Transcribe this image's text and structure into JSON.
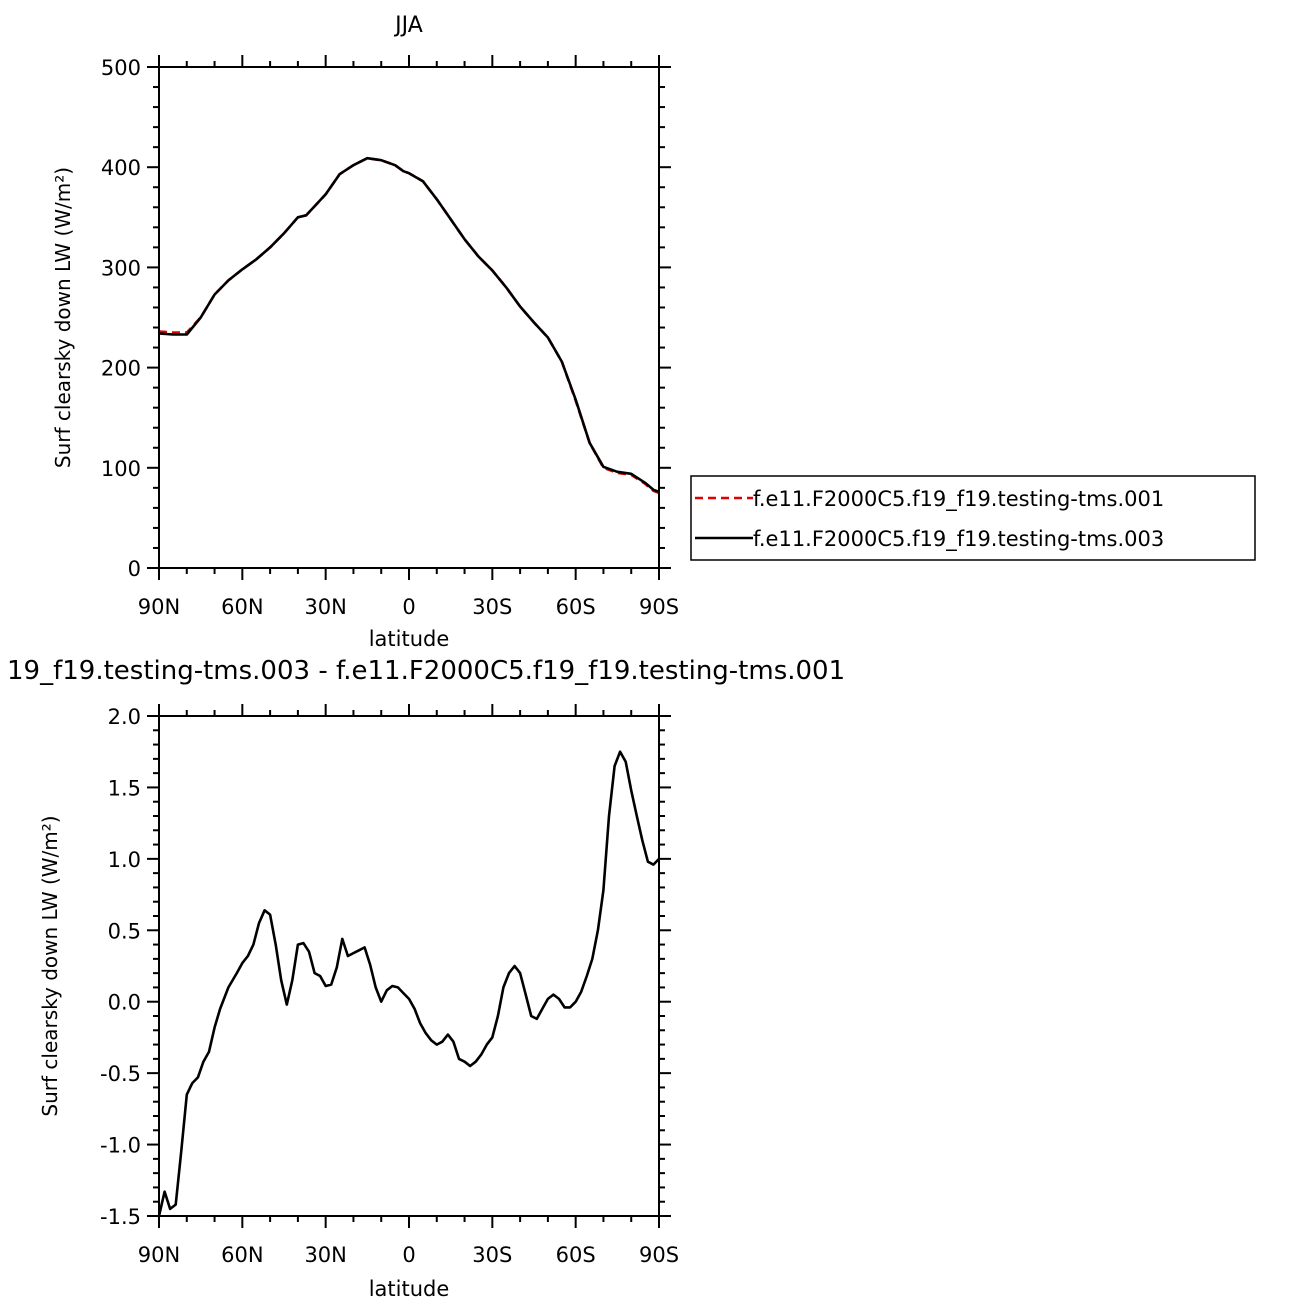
{
  "chart_data": [
    {
      "type": "line",
      "title": "JJA",
      "xlabel": "latitude",
      "ylabel": "Surf clearsky down LW (W/m²)",
      "x_tick_labels": [
        "90N",
        "60N",
        "30N",
        "0",
        "30S",
        "60S",
        "90S"
      ],
      "x_tick_values": [
        90,
        60,
        30,
        0,
        -30,
        -60,
        -90
      ],
      "xlim": [
        90,
        -90
      ],
      "ylim": [
        0,
        500
      ],
      "y_tick_labels": [
        "0",
        "100",
        "200",
        "300",
        "400",
        "500"
      ],
      "y_tick_values": [
        0,
        100,
        200,
        300,
        400,
        500
      ],
      "y_minor_step": 20,
      "grid": false,
      "legend_placement": "right",
      "series": [
        {
          "name": "f.e11.F2000C5.f19_f19.testing-tms.001",
          "color": "#e00000",
          "dash": "dashed",
          "x": [
            90,
            85,
            80,
            75,
            70,
            65,
            60,
            55,
            50,
            45,
            40,
            37,
            35,
            30,
            25,
            20,
            15,
            10,
            5,
            2,
            0,
            -5,
            -10,
            -15,
            -20,
            -25,
            -30,
            -35,
            -40,
            -45,
            -50,
            -55,
            -60,
            -65,
            -70,
            -75,
            -80,
            -85,
            -88,
            -90
          ],
          "y": [
            236,
            235,
            235,
            250,
            273,
            287,
            298,
            308,
            320,
            334,
            350,
            352,
            358,
            373,
            393,
            402,
            409,
            407,
            402,
            396,
            394,
            386,
            368,
            348,
            328,
            311,
            297,
            280,
            261,
            245,
            230,
            206,
            167,
            125,
            100,
            95,
            93,
            84,
            77,
            75
          ]
        },
        {
          "name": "f.e11.F2000C5.f19_f19.testing-tms.003",
          "color": "#000000",
          "dash": "solid",
          "x": [
            90,
            85,
            80,
            75,
            70,
            65,
            60,
            55,
            50,
            45,
            40,
            37,
            35,
            30,
            25,
            20,
            15,
            10,
            5,
            2,
            0,
            -5,
            -10,
            -15,
            -20,
            -25,
            -30,
            -35,
            -40,
            -45,
            -50,
            -55,
            -60,
            -65,
            -70,
            -75,
            -80,
            -85,
            -88,
            -90
          ],
          "y": [
            234,
            233,
            233,
            250,
            273,
            287,
            298,
            308,
            320,
            334,
            350,
            352,
            358,
            373,
            393,
            402,
            409,
            407,
            402,
            396,
            394,
            386,
            368,
            348,
            328,
            311,
            297,
            280,
            261,
            245,
            230,
            206,
            168,
            125,
            101,
            96,
            94,
            85,
            78,
            76
          ]
        }
      ]
    },
    {
      "type": "line",
      "title": "19_f19.testing-tms.003 - f.e11.F2000C5.f19_f19.testing-tms.001",
      "xlabel": "latitude",
      "ylabel": "Surf clearsky down LW (W/m²)",
      "x_tick_labels": [
        "90N",
        "60N",
        "30N",
        "0",
        "30S",
        "60S",
        "90S"
      ],
      "x_tick_values": [
        90,
        60,
        30,
        0,
        -30,
        -60,
        -90
      ],
      "xlim": [
        90,
        -90
      ],
      "ylim": [
        -1.5,
        2.0
      ],
      "y_tick_labels": [
        "-1.5",
        "-1.0",
        "-0.5",
        "0.0",
        "0.5",
        "1.0",
        "1.5",
        "2.0"
      ],
      "y_tick_values": [
        -1.5,
        -1.0,
        -0.5,
        0.0,
        0.5,
        1.0,
        1.5,
        2.0
      ],
      "y_minor_step": 0.1,
      "grid": false,
      "series": [
        {
          "color": "#000000",
          "dash": "solid",
          "x": [
            90,
            88,
            86,
            84,
            82,
            80,
            78,
            76,
            74,
            72,
            70,
            68,
            65,
            62,
            60,
            58,
            56,
            54,
            52,
            50,
            48,
            46,
            44,
            42,
            40,
            38,
            36,
            34,
            32,
            30,
            28,
            26,
            24,
            22,
            20,
            18,
            16,
            14,
            12,
            10,
            8,
            6,
            4,
            2,
            0,
            -2,
            -4,
            -6,
            -8,
            -10,
            -12,
            -14,
            -16,
            -18,
            -20,
            -22,
            -24,
            -26,
            -28,
            -30,
            -32,
            -34,
            -36,
            -38,
            -40,
            -42,
            -44,
            -46,
            -48,
            -50,
            -52,
            -54,
            -56,
            -58,
            -60,
            -62,
            -64,
            -66,
            -68,
            -70,
            -72,
            -74,
            -76,
            -78,
            -80,
            -82,
            -84,
            -86,
            -88,
            -90
          ],
          "y": [
            -1.5,
            -1.33,
            -1.45,
            -1.42,
            -1.05,
            -0.65,
            -0.57,
            -0.53,
            -0.42,
            -0.35,
            -0.18,
            -0.05,
            0.1,
            0.2,
            0.27,
            0.32,
            0.4,
            0.55,
            0.64,
            0.61,
            0.4,
            0.15,
            -0.02,
            0.15,
            0.4,
            0.41,
            0.35,
            0.2,
            0.18,
            0.11,
            0.12,
            0.24,
            0.44,
            0.32,
            0.34,
            0.36,
            0.38,
            0.26,
            0.1,
            0.0,
            0.08,
            0.11,
            0.1,
            0.06,
            0.02,
            -0.05,
            -0.15,
            -0.22,
            -0.27,
            -0.3,
            -0.28,
            -0.23,
            -0.28,
            -0.4,
            -0.42,
            -0.45,
            -0.42,
            -0.37,
            -0.3,
            -0.25,
            -0.1,
            0.1,
            0.2,
            0.25,
            0.2,
            0.05,
            -0.1,
            -0.12,
            -0.05,
            0.02,
            0.05,
            0.02,
            -0.04,
            -0.04,
            0.0,
            0.07,
            0.18,
            0.3,
            0.5,
            0.78,
            1.3,
            1.65,
            1.75,
            1.68,
            1.48,
            1.3,
            1.13,
            0.98,
            0.96,
            1.0
          ]
        }
      ]
    }
  ]
}
